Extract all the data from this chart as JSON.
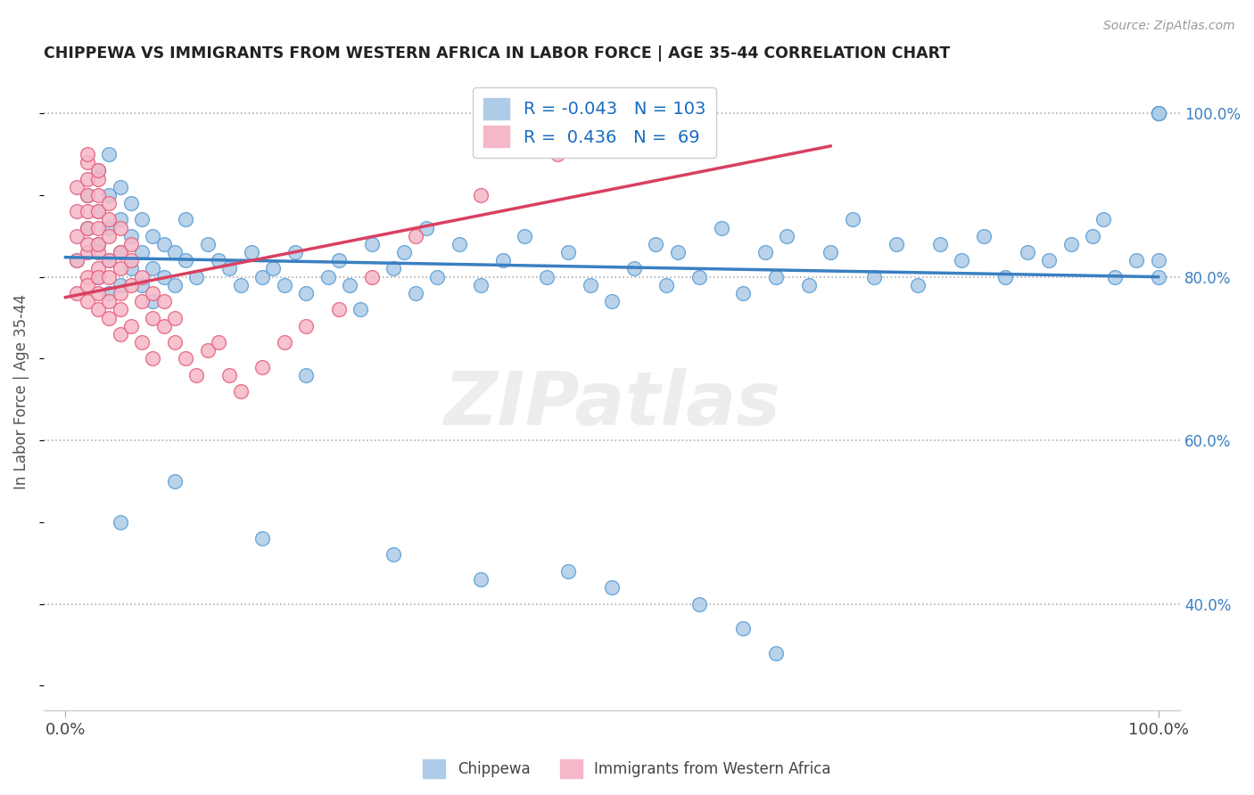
{
  "title": "CHIPPEWA VS IMMIGRANTS FROM WESTERN AFRICA IN LABOR FORCE | AGE 35-44 CORRELATION CHART",
  "source": "Source: ZipAtlas.com",
  "ylabel": "In Labor Force | Age 35-44",
  "xlim": [
    -0.02,
    1.02
  ],
  "ylim": [
    0.27,
    1.05
  ],
  "y_ticks_right": [
    0.4,
    0.6,
    0.8,
    1.0
  ],
  "y_tick_labels_right": [
    "40.0%",
    "60.0%",
    "80.0%",
    "100.0%"
  ],
  "blue_R": -0.043,
  "blue_N": 103,
  "pink_R": 0.436,
  "pink_N": 69,
  "blue_color": "#aecce8",
  "pink_color": "#f5b8c8",
  "blue_edge_color": "#5a9fd4",
  "pink_edge_color": "#e8607a",
  "blue_line_color": "#3a7fc1",
  "pink_line_color": "#d94060",
  "legend_blue_label": "Chippewa",
  "legend_pink_label": "Immigrants from Western Africa",
  "blue_trend_x": [
    0.0,
    1.0
  ],
  "blue_trend_y": [
    0.824,
    0.8
  ],
  "pink_trend_x": [
    0.0,
    0.7
  ],
  "pink_trend_y": [
    0.775,
    0.96
  ],
  "blue_x": [
    0.01,
    0.02,
    0.02,
    0.03,
    0.03,
    0.03,
    0.03,
    0.04,
    0.04,
    0.04,
    0.04,
    0.04,
    0.05,
    0.05,
    0.05,
    0.05,
    0.06,
    0.06,
    0.06,
    0.07,
    0.07,
    0.07,
    0.08,
    0.08,
    0.08,
    0.09,
    0.09,
    0.1,
    0.1,
    0.11,
    0.11,
    0.12,
    0.13,
    0.14,
    0.15,
    0.16,
    0.17,
    0.18,
    0.19,
    0.2,
    0.21,
    0.22,
    0.24,
    0.25,
    0.26,
    0.27,
    0.28,
    0.3,
    0.31,
    0.32,
    0.33,
    0.34,
    0.36,
    0.38,
    0.4,
    0.42,
    0.44,
    0.46,
    0.48,
    0.5,
    0.52,
    0.54,
    0.55,
    0.56,
    0.58,
    0.6,
    0.62,
    0.64,
    0.65,
    0.66,
    0.68,
    0.7,
    0.72,
    0.74,
    0.76,
    0.78,
    0.8,
    0.82,
    0.84,
    0.86,
    0.88,
    0.9,
    0.92,
    0.94,
    0.95,
    0.96,
    0.98,
    1.0,
    1.0,
    1.0,
    1.0,
    1.0,
    0.05,
    0.1,
    0.18,
    0.22,
    0.3,
    0.38,
    0.46,
    0.5,
    0.58,
    0.62,
    0.65
  ],
  "blue_y": [
    0.82,
    0.9,
    0.86,
    0.88,
    0.84,
    0.8,
    0.93,
    0.86,
    0.82,
    0.78,
    0.9,
    0.95,
    0.87,
    0.83,
    0.79,
    0.91,
    0.85,
    0.81,
    0.89,
    0.83,
    0.87,
    0.79,
    0.85,
    0.81,
    0.77,
    0.84,
    0.8,
    0.83,
    0.79,
    0.82,
    0.87,
    0.8,
    0.84,
    0.82,
    0.81,
    0.79,
    0.83,
    0.8,
    0.81,
    0.79,
    0.83,
    0.78,
    0.8,
    0.82,
    0.79,
    0.76,
    0.84,
    0.81,
    0.83,
    0.78,
    0.86,
    0.8,
    0.84,
    0.79,
    0.82,
    0.85,
    0.8,
    0.83,
    0.79,
    0.77,
    0.81,
    0.84,
    0.79,
    0.83,
    0.8,
    0.86,
    0.78,
    0.83,
    0.8,
    0.85,
    0.79,
    0.83,
    0.87,
    0.8,
    0.84,
    0.79,
    0.84,
    0.82,
    0.85,
    0.8,
    0.83,
    0.82,
    0.84,
    0.85,
    0.87,
    0.8,
    0.82,
    1.0,
    1.0,
    1.0,
    0.8,
    0.82,
    0.5,
    0.55,
    0.48,
    0.68,
    0.46,
    0.43,
    0.44,
    0.42,
    0.4,
    0.37,
    0.34
  ],
  "pink_x": [
    0.01,
    0.01,
    0.01,
    0.01,
    0.01,
    0.02,
    0.02,
    0.02,
    0.02,
    0.02,
    0.02,
    0.02,
    0.02,
    0.02,
    0.02,
    0.02,
    0.03,
    0.03,
    0.03,
    0.03,
    0.03,
    0.03,
    0.03,
    0.03,
    0.03,
    0.03,
    0.03,
    0.04,
    0.04,
    0.04,
    0.04,
    0.04,
    0.04,
    0.04,
    0.05,
    0.05,
    0.05,
    0.05,
    0.05,
    0.05,
    0.06,
    0.06,
    0.06,
    0.06,
    0.07,
    0.07,
    0.07,
    0.08,
    0.08,
    0.08,
    0.09,
    0.09,
    0.1,
    0.1,
    0.11,
    0.12,
    0.13,
    0.14,
    0.15,
    0.16,
    0.18,
    0.2,
    0.22,
    0.25,
    0.28,
    0.32,
    0.38,
    0.45,
    0.55
  ],
  "pink_y": [
    0.78,
    0.82,
    0.85,
    0.88,
    0.91,
    0.77,
    0.8,
    0.83,
    0.86,
    0.88,
    0.9,
    0.92,
    0.94,
    0.95,
    0.79,
    0.84,
    0.78,
    0.81,
    0.83,
    0.86,
    0.88,
    0.9,
    0.92,
    0.93,
    0.76,
    0.8,
    0.84,
    0.77,
    0.8,
    0.82,
    0.85,
    0.87,
    0.89,
    0.75,
    0.78,
    0.81,
    0.83,
    0.86,
    0.73,
    0.76,
    0.79,
    0.82,
    0.84,
    0.74,
    0.77,
    0.8,
    0.72,
    0.75,
    0.78,
    0.7,
    0.74,
    0.77,
    0.72,
    0.75,
    0.7,
    0.68,
    0.71,
    0.72,
    0.68,
    0.66,
    0.69,
    0.72,
    0.74,
    0.76,
    0.8,
    0.85,
    0.9,
    0.95,
    1.0
  ]
}
